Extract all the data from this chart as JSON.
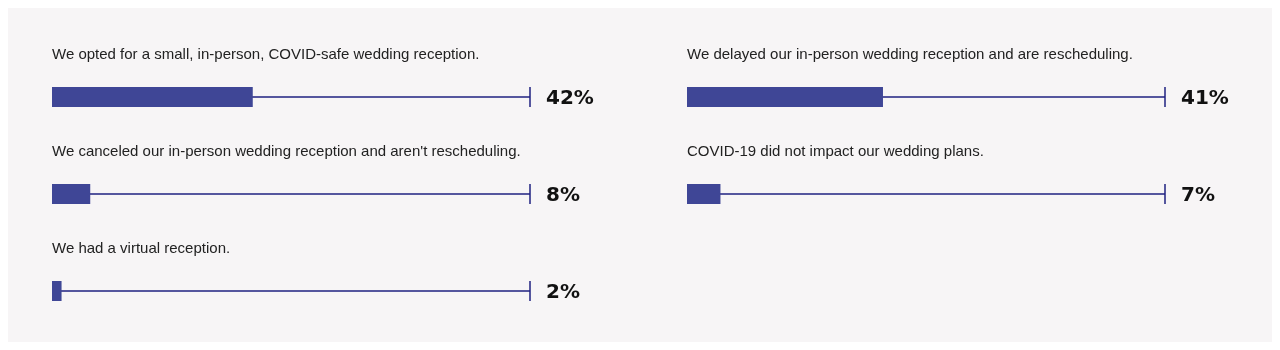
{
  "chart_data": [
    {
      "type": "bar",
      "orientation": "horizontal",
      "categories": [
        "We opted for a small, in-person, COVID-safe wedding reception.",
        "We canceled our in-person wedding reception and aren't rescheduling.",
        "We had a virtual reception."
      ],
      "values": [
        42,
        8,
        2
      ],
      "value_labels": [
        "42%",
        "8%",
        "2%"
      ],
      "color": "#3f4696",
      "xlim": [
        0,
        100
      ],
      "tick_labels": false
    },
    {
      "type": "bar",
      "orientation": "horizontal",
      "categories": [
        "We delayed our in-person wedding reception and are rescheduling.",
        "COVID-19 did not impact our wedding plans."
      ],
      "values": [
        41,
        7
      ],
      "value_labels": [
        "41%",
        "7%"
      ],
      "color": "#3f4696",
      "xlim": [
        0,
        100
      ],
      "tick_labels": false
    }
  ]
}
